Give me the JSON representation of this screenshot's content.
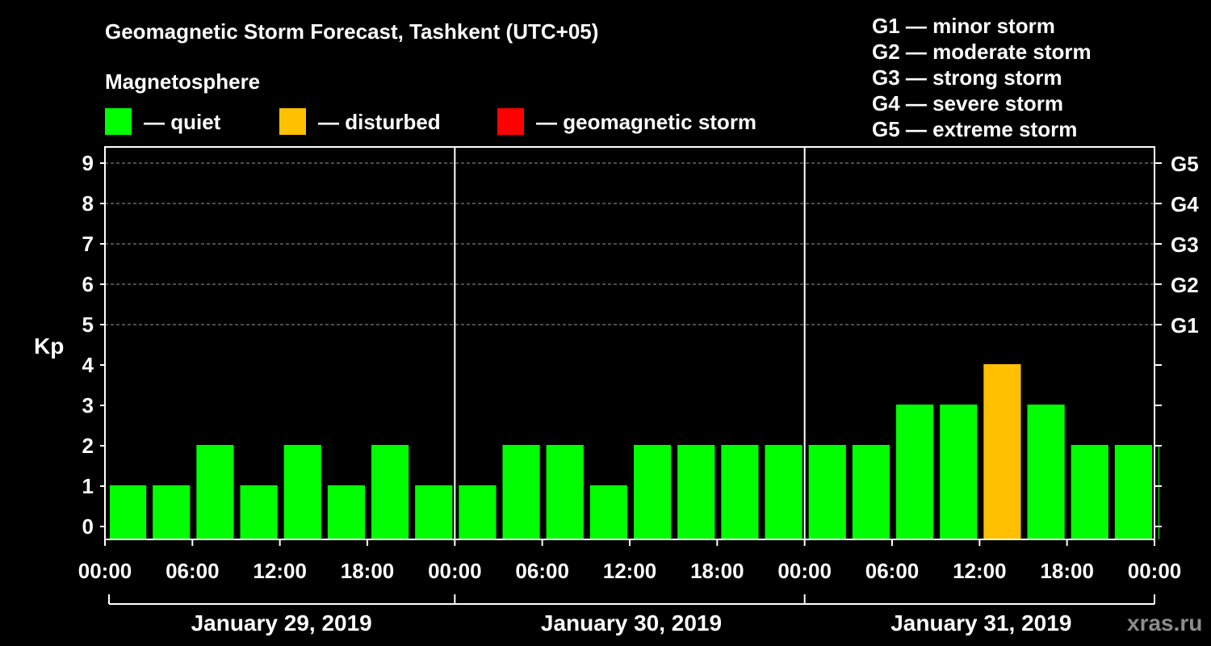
{
  "title": "Geomagnetic Storm Forecast, Tashkent (UTC+05)",
  "legend": {
    "heading": "Magnetosphere",
    "items": [
      {
        "label": "— quiet",
        "color": "#00FF00"
      },
      {
        "label": "— disturbed",
        "color": "#FFC000"
      },
      {
        "label": "— geomagnetic storm",
        "color": "#FF0000"
      }
    ]
  },
  "storm_scale": [
    {
      "level": "G1",
      "desc": "G1 — minor storm"
    },
    {
      "level": "G2",
      "desc": "G2 — moderate storm"
    },
    {
      "level": "G3",
      "desc": "G3 — strong storm"
    },
    {
      "level": "G4",
      "desc": "G4 — severe storm"
    },
    {
      "level": "G5",
      "desc": "G5 — extreme storm"
    }
  ],
  "watermark": "xras.ru",
  "chart_data": {
    "type": "bar",
    "title": "Geomagnetic Storm Forecast, Tashkent (UTC+05)",
    "ylabel": "Kp",
    "ylim": [
      0,
      9
    ],
    "yticks": [
      0,
      1,
      2,
      3,
      4,
      5,
      6,
      7,
      8,
      9
    ],
    "right_ticks": [
      {
        "kp": 5,
        "label": "G1"
      },
      {
        "kp": 6,
        "label": "G2"
      },
      {
        "kp": 7,
        "label": "G3"
      },
      {
        "kp": 8,
        "label": "G4"
      },
      {
        "kp": 9,
        "label": "G5"
      }
    ],
    "x_tick_labels": [
      "00:00",
      "06:00",
      "12:00",
      "18:00",
      "00:00",
      "06:00",
      "12:00",
      "18:00",
      "00:00",
      "06:00",
      "12:00",
      "18:00",
      "00:00"
    ],
    "days": [
      "January 29, 2019",
      "January 30, 2019",
      "January 31, 2019"
    ],
    "interval_hours": 3,
    "values": [
      1,
      1,
      2,
      1,
      2,
      1,
      2,
      1,
      1,
      2,
      2,
      1,
      2,
      2,
      2,
      2,
      2,
      2,
      3,
      3,
      4,
      3,
      2,
      2,
      2
    ],
    "status": [
      "quiet",
      "quiet",
      "quiet",
      "quiet",
      "quiet",
      "quiet",
      "quiet",
      "quiet",
      "quiet",
      "quiet",
      "quiet",
      "quiet",
      "quiet",
      "quiet",
      "quiet",
      "quiet",
      "quiet",
      "quiet",
      "quiet",
      "quiet",
      "disturbed",
      "quiet",
      "quiet",
      "quiet",
      "quiet"
    ],
    "status_colors": {
      "quiet": "#00FF00",
      "disturbed": "#FFC000",
      "storm": "#FF0000"
    },
    "grid": true
  }
}
